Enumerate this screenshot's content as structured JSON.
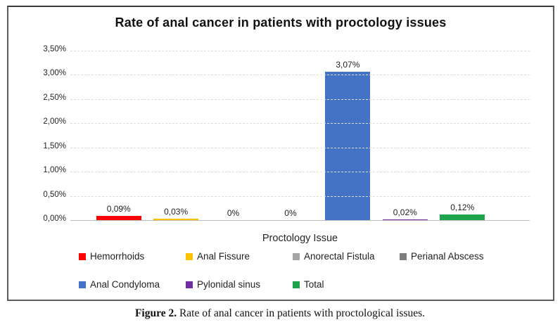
{
  "figure": {
    "caption_label": "Figure 2.",
    "caption_text": "Rate of anal cancer in patients with proctological issues."
  },
  "chart_data": {
    "type": "bar",
    "title": "Rate of anal cancer in patients with proctology issues",
    "xlabel": "Proctology Issue",
    "ylabel": "",
    "categories": [
      "Hemorrhoids",
      "Anal Fissure",
      "Anorectal Fistula",
      "Perianal Abscess",
      "Anal Condyloma",
      "Pylonidal sinus",
      "Total"
    ],
    "values": [
      0.09,
      0.03,
      0,
      0,
      3.07,
      0.02,
      0.12
    ],
    "data_labels": [
      "0,09%",
      "0,03%",
      "0%",
      "0%",
      "3,07%",
      "0,02%",
      "0,12%"
    ],
    "colors": [
      "#FF0000",
      "#FFC000",
      "#A6A6A6",
      "#7F7F7F",
      "#4472C4",
      "#7030A0",
      "#1EA54C"
    ],
    "ylim": [
      0,
      3.5
    ],
    "ytick_labels": [
      "3,50%",
      "3,00%",
      "2,50%",
      "2,00%",
      "1,50%",
      "1,00%",
      "0,50%",
      "0,00%"
    ],
    "grid": "horizontal dashed",
    "legend_position": "bottom",
    "legend_rows": [
      [
        "Hemorrhoids",
        "Anal Fissure",
        "Anorectal Fistula",
        "Perianal Abscess"
      ],
      [
        "Anal Condyloma",
        "Pylonidal sinus",
        "Total"
      ]
    ]
  }
}
